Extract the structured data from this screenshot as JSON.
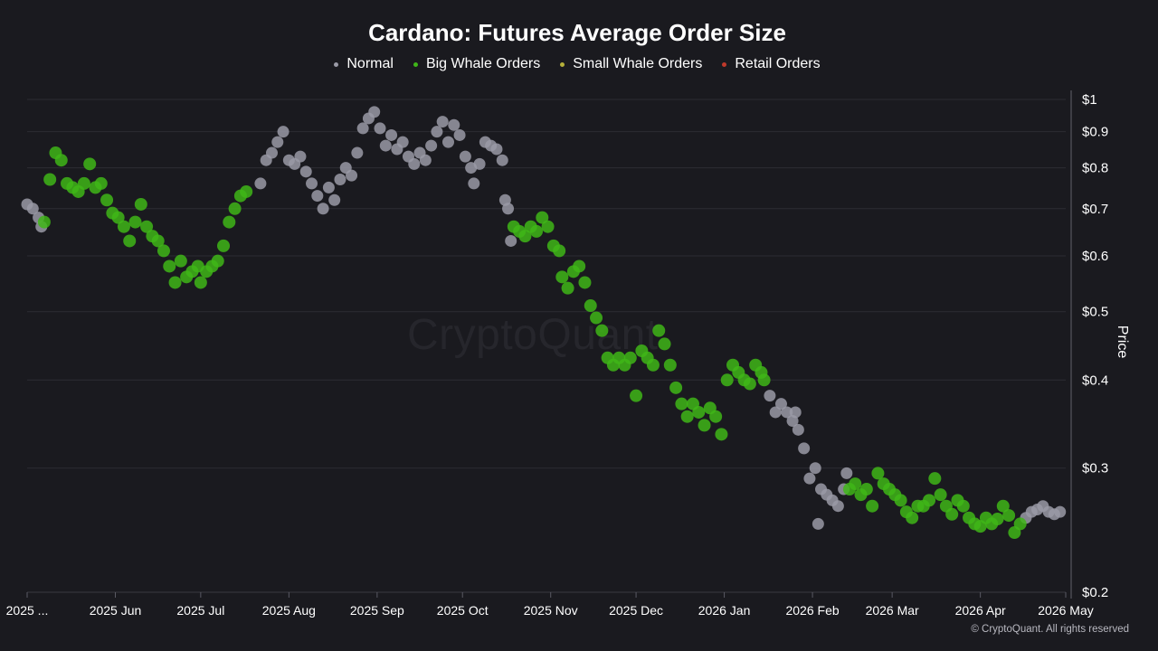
{
  "title": "Cardano: Futures Average Order Size",
  "legend": [
    {
      "label": "Normal",
      "color": "#9a9aa6"
    },
    {
      "label": "Big Whale Orders",
      "color": "#3fb618"
    },
    {
      "label": "Small Whale Orders",
      "color": "#b5b03a"
    },
    {
      "label": "Retail Orders",
      "color": "#c0392b"
    }
  ],
  "watermark": "CryptoQuant",
  "copyright": "© CryptoQuant. All rights reserved",
  "chart_data": {
    "type": "scatter",
    "title": "Cardano: Futures Average Order Size",
    "ylabel": "Price",
    "yscale": "log",
    "ylim": [
      0.2,
      1.0
    ],
    "xlim": [
      "2025-05-01",
      "2026-05-01"
    ],
    "grid": true,
    "legend_position": "top-center",
    "y_ticks": [
      {
        "value": 1.0,
        "label": "$1"
      },
      {
        "value": 0.9,
        "label": "$0.9"
      },
      {
        "value": 0.8,
        "label": "$0.8"
      },
      {
        "value": 0.7,
        "label": "$0.7"
      },
      {
        "value": 0.6,
        "label": "$0.6"
      },
      {
        "value": 0.5,
        "label": "$0.5"
      },
      {
        "value": 0.4,
        "label": "$0.4"
      },
      {
        "value": 0.3,
        "label": "$0.3"
      },
      {
        "value": 0.2,
        "label": "$0.2"
      }
    ],
    "x_ticks": [
      {
        "date": "2025-05-01",
        "label": "2025 ..."
      },
      {
        "date": "2025-06-01",
        "label": "2025 Jun"
      },
      {
        "date": "2025-07-01",
        "label": "2025 Jul"
      },
      {
        "date": "2025-08-01",
        "label": "2025 Aug"
      },
      {
        "date": "2025-09-01",
        "label": "2025 Sep"
      },
      {
        "date": "2025-10-01",
        "label": "2025 Oct"
      },
      {
        "date": "2025-11-01",
        "label": "2025 Nov"
      },
      {
        "date": "2025-12-01",
        "label": "2025 Dec"
      },
      {
        "date": "2026-01-01",
        "label": "2026 Jan"
      },
      {
        "date": "2026-02-01",
        "label": "2026 Feb"
      },
      {
        "date": "2026-03-01",
        "label": "2026 Mar"
      },
      {
        "date": "2026-04-01",
        "label": "2026 Apr"
      },
      {
        "date": "2026-05-01",
        "label": "2026 May"
      }
    ],
    "series": [
      {
        "name": "Normal",
        "color": "#9a9aa6",
        "points": [
          [
            "2025-05-01",
            0.71
          ],
          [
            "2025-05-03",
            0.7
          ],
          [
            "2025-05-05",
            0.68
          ],
          [
            "2025-05-06",
            0.66
          ],
          [
            "2025-07-22",
            0.76
          ],
          [
            "2025-07-24",
            0.82
          ],
          [
            "2025-07-26",
            0.84
          ],
          [
            "2025-07-28",
            0.87
          ],
          [
            "2025-07-30",
            0.9
          ],
          [
            "2025-08-01",
            0.82
          ],
          [
            "2025-08-03",
            0.81
          ],
          [
            "2025-08-05",
            0.83
          ],
          [
            "2025-08-07",
            0.79
          ],
          [
            "2025-08-09",
            0.76
          ],
          [
            "2025-08-11",
            0.73
          ],
          [
            "2025-08-13",
            0.7
          ],
          [
            "2025-08-15",
            0.75
          ],
          [
            "2025-08-17",
            0.72
          ],
          [
            "2025-08-19",
            0.77
          ],
          [
            "2025-08-21",
            0.8
          ],
          [
            "2025-08-23",
            0.78
          ],
          [
            "2025-08-25",
            0.84
          ],
          [
            "2025-08-27",
            0.91
          ],
          [
            "2025-08-29",
            0.94
          ],
          [
            "2025-08-31",
            0.96
          ],
          [
            "2025-09-02",
            0.91
          ],
          [
            "2025-09-04",
            0.86
          ],
          [
            "2025-09-06",
            0.89
          ],
          [
            "2025-09-08",
            0.85
          ],
          [
            "2025-09-10",
            0.87
          ],
          [
            "2025-09-12",
            0.83
          ],
          [
            "2025-09-14",
            0.81
          ],
          [
            "2025-09-16",
            0.84
          ],
          [
            "2025-09-18",
            0.82
          ],
          [
            "2025-09-20",
            0.86
          ],
          [
            "2025-09-22",
            0.9
          ],
          [
            "2025-09-24",
            0.93
          ],
          [
            "2025-09-26",
            0.87
          ],
          [
            "2025-09-28",
            0.92
          ],
          [
            "2025-09-30",
            0.89
          ],
          [
            "2025-10-02",
            0.83
          ],
          [
            "2025-10-04",
            0.8
          ],
          [
            "2025-10-05",
            0.76
          ],
          [
            "2025-10-07",
            0.81
          ],
          [
            "2025-10-09",
            0.87
          ],
          [
            "2025-10-11",
            0.86
          ],
          [
            "2025-10-13",
            0.85
          ],
          [
            "2025-10-15",
            0.82
          ],
          [
            "2025-10-16",
            0.72
          ],
          [
            "2025-10-17",
            0.7
          ],
          [
            "2025-10-18",
            0.63
          ],
          [
            "2026-01-17",
            0.38
          ],
          [
            "2026-01-19",
            0.36
          ],
          [
            "2026-01-21",
            0.37
          ],
          [
            "2026-01-23",
            0.36
          ],
          [
            "2026-01-25",
            0.35
          ],
          [
            "2026-01-26",
            0.36
          ],
          [
            "2026-01-27",
            0.34
          ],
          [
            "2026-01-29",
            0.32
          ],
          [
            "2026-01-31",
            0.29
          ],
          [
            "2026-02-02",
            0.3
          ],
          [
            "2026-02-04",
            0.28
          ],
          [
            "2026-02-06",
            0.275
          ],
          [
            "2026-02-08",
            0.27
          ],
          [
            "2026-02-10",
            0.265
          ],
          [
            "2026-02-12",
            0.28
          ],
          [
            "2026-02-13",
            0.295
          ],
          [
            "2026-02-03",
            0.25
          ],
          [
            "2026-04-17",
            0.255
          ],
          [
            "2026-04-19",
            0.26
          ],
          [
            "2026-04-21",
            0.262
          ],
          [
            "2026-04-23",
            0.265
          ],
          [
            "2026-04-25",
            0.26
          ],
          [
            "2026-04-27",
            0.258
          ],
          [
            "2026-04-29",
            0.26
          ]
        ]
      },
      {
        "name": "Big Whale Orders",
        "color": "#3fb618",
        "points": [
          [
            "2025-05-07",
            0.67
          ],
          [
            "2025-05-09",
            0.77
          ],
          [
            "2025-05-11",
            0.84
          ],
          [
            "2025-05-13",
            0.82
          ],
          [
            "2025-05-15",
            0.76
          ],
          [
            "2025-05-17",
            0.75
          ],
          [
            "2025-05-19",
            0.74
          ],
          [
            "2025-05-21",
            0.76
          ],
          [
            "2025-05-23",
            0.81
          ],
          [
            "2025-05-25",
            0.75
          ],
          [
            "2025-05-27",
            0.76
          ],
          [
            "2025-05-29",
            0.72
          ],
          [
            "2025-05-31",
            0.69
          ],
          [
            "2025-06-02",
            0.68
          ],
          [
            "2025-06-04",
            0.66
          ],
          [
            "2025-06-06",
            0.63
          ],
          [
            "2025-06-08",
            0.67
          ],
          [
            "2025-06-10",
            0.71
          ],
          [
            "2025-06-12",
            0.66
          ],
          [
            "2025-06-14",
            0.64
          ],
          [
            "2025-06-16",
            0.63
          ],
          [
            "2025-06-18",
            0.61
          ],
          [
            "2025-06-20",
            0.58
          ],
          [
            "2025-06-22",
            0.55
          ],
          [
            "2025-06-24",
            0.59
          ],
          [
            "2025-06-26",
            0.56
          ],
          [
            "2025-06-28",
            0.57
          ],
          [
            "2025-06-30",
            0.58
          ],
          [
            "2025-07-01",
            0.55
          ],
          [
            "2025-07-03",
            0.57
          ],
          [
            "2025-07-05",
            0.58
          ],
          [
            "2025-07-07",
            0.59
          ],
          [
            "2025-07-09",
            0.62
          ],
          [
            "2025-07-11",
            0.67
          ],
          [
            "2025-07-13",
            0.7
          ],
          [
            "2025-07-15",
            0.73
          ],
          [
            "2025-07-17",
            0.74
          ],
          [
            "2025-10-19",
            0.66
          ],
          [
            "2025-10-21",
            0.65
          ],
          [
            "2025-10-23",
            0.64
          ],
          [
            "2025-10-25",
            0.66
          ],
          [
            "2025-10-27",
            0.65
          ],
          [
            "2025-10-29",
            0.68
          ],
          [
            "2025-10-31",
            0.66
          ],
          [
            "2025-11-02",
            0.62
          ],
          [
            "2025-11-04",
            0.61
          ],
          [
            "2025-11-05",
            0.56
          ],
          [
            "2025-11-07",
            0.54
          ],
          [
            "2025-11-09",
            0.57
          ],
          [
            "2025-11-11",
            0.58
          ],
          [
            "2025-11-13",
            0.55
          ],
          [
            "2025-11-15",
            0.51
          ],
          [
            "2025-11-17",
            0.49
          ],
          [
            "2025-11-19",
            0.47
          ],
          [
            "2025-11-21",
            0.43
          ],
          [
            "2025-11-23",
            0.42
          ],
          [
            "2025-11-25",
            0.43
          ],
          [
            "2025-11-27",
            0.42
          ],
          [
            "2025-11-29",
            0.43
          ],
          [
            "2025-12-01",
            0.38
          ],
          [
            "2025-12-03",
            0.44
          ],
          [
            "2025-12-05",
            0.43
          ],
          [
            "2025-12-07",
            0.42
          ],
          [
            "2025-12-09",
            0.47
          ],
          [
            "2025-12-11",
            0.45
          ],
          [
            "2025-12-13",
            0.42
          ],
          [
            "2025-12-15",
            0.39
          ],
          [
            "2025-12-17",
            0.37
          ],
          [
            "2025-12-19",
            0.355
          ],
          [
            "2025-12-21",
            0.37
          ],
          [
            "2025-12-23",
            0.36
          ],
          [
            "2025-12-25",
            0.345
          ],
          [
            "2025-12-27",
            0.365
          ],
          [
            "2025-12-29",
            0.355
          ],
          [
            "2025-12-31",
            0.335
          ],
          [
            "2026-01-02",
            0.4
          ],
          [
            "2026-01-04",
            0.42
          ],
          [
            "2026-01-06",
            0.41
          ],
          [
            "2026-01-08",
            0.4
          ],
          [
            "2026-01-10",
            0.395
          ],
          [
            "2026-01-12",
            0.42
          ],
          [
            "2026-01-14",
            0.41
          ],
          [
            "2026-01-15",
            0.4
          ],
          [
            "2026-02-14",
            0.28
          ],
          [
            "2026-02-16",
            0.285
          ],
          [
            "2026-02-18",
            0.275
          ],
          [
            "2026-02-20",
            0.28
          ],
          [
            "2026-02-22",
            0.265
          ],
          [
            "2026-02-24",
            0.295
          ],
          [
            "2026-02-26",
            0.285
          ],
          [
            "2026-02-28",
            0.28
          ],
          [
            "2026-03-02",
            0.275
          ],
          [
            "2026-03-04",
            0.27
          ],
          [
            "2026-03-06",
            0.26
          ],
          [
            "2026-03-08",
            0.255
          ],
          [
            "2026-03-10",
            0.265
          ],
          [
            "2026-03-12",
            0.265
          ],
          [
            "2026-03-14",
            0.27
          ],
          [
            "2026-03-16",
            0.29
          ],
          [
            "2026-03-18",
            0.275
          ],
          [
            "2026-03-20",
            0.265
          ],
          [
            "2026-03-22",
            0.258
          ],
          [
            "2026-03-24",
            0.27
          ],
          [
            "2026-03-26",
            0.265
          ],
          [
            "2026-03-28",
            0.255
          ],
          [
            "2026-03-30",
            0.25
          ],
          [
            "2026-04-01",
            0.248
          ],
          [
            "2026-04-03",
            0.255
          ],
          [
            "2026-04-05",
            0.25
          ],
          [
            "2026-04-07",
            0.254
          ],
          [
            "2026-04-09",
            0.265
          ],
          [
            "2026-04-11",
            0.257
          ],
          [
            "2026-04-13",
            0.243
          ],
          [
            "2026-04-15",
            0.25
          ]
        ]
      },
      {
        "name": "Small Whale Orders",
        "color": "#b5b03a",
        "points": []
      },
      {
        "name": "Retail Orders",
        "color": "#c0392b",
        "points": []
      }
    ]
  }
}
